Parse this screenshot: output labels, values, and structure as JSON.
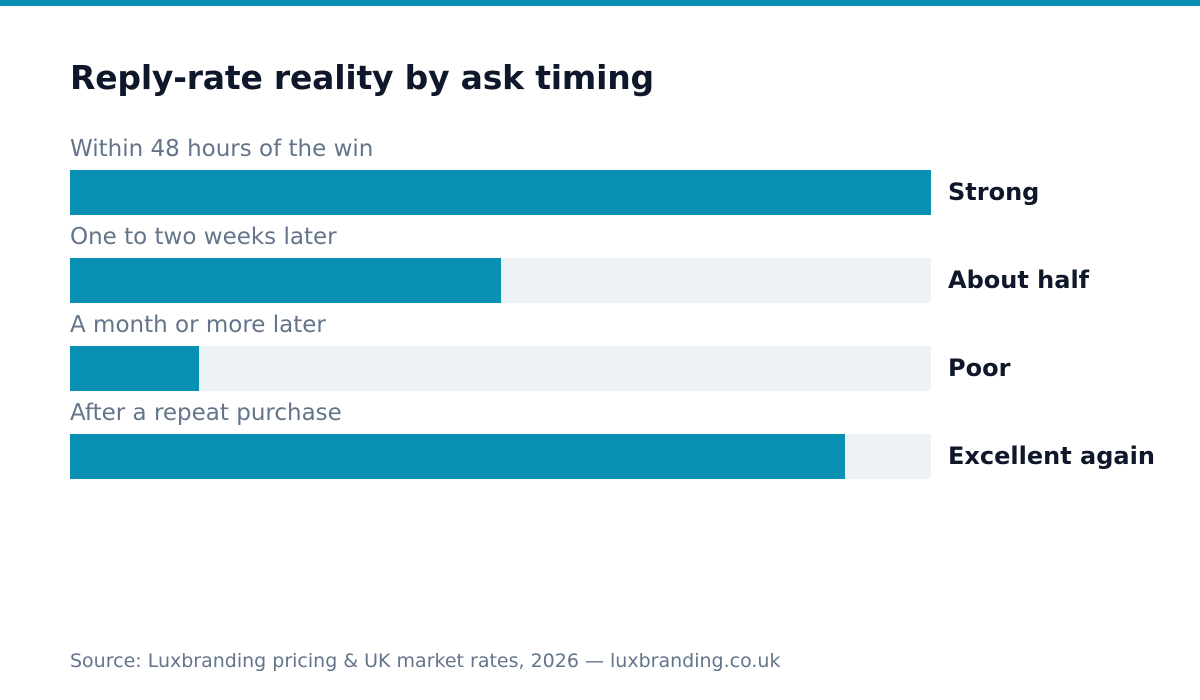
{
  "colors": {
    "accent": "#0891b2",
    "track": "#edf2f6",
    "title": "#0f172a",
    "muted": "#64748b"
  },
  "title": "Reply-rate reality by ask timing",
  "source": "Source: Luxbranding pricing & UK market rates, 2026 — luxbranding.co.uk",
  "chart_data": {
    "type": "bar",
    "orientation": "horizontal",
    "title": "Reply-rate reality by ask timing",
    "xlim": [
      0,
      1
    ],
    "grid": false,
    "categories": [
      "Within 48 hours of the win",
      "One to two weeks later",
      "A month or more later",
      "After a repeat purchase"
    ],
    "values": [
      1.0,
      0.5,
      0.15,
      0.9
    ],
    "labels": [
      "Strong",
      "About half",
      "Poor",
      "Excellent again"
    ]
  }
}
